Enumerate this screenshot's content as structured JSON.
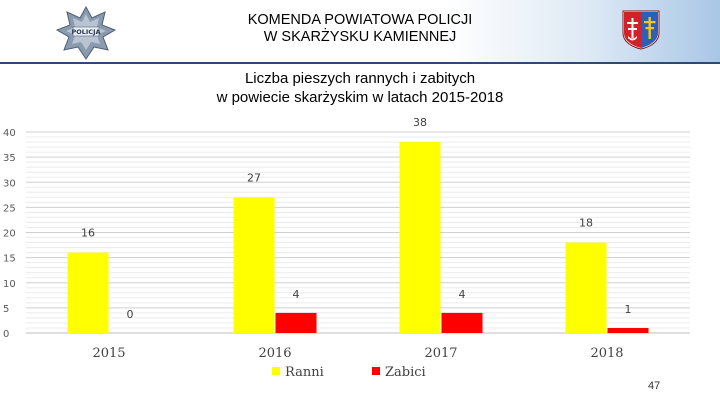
{
  "header": {
    "title_line1": "KOMENDA POWIATOWA POLICJI",
    "title_line2": "W SKARŻYSKU KAMIENNEJ",
    "left_logo_text": "POLICJA"
  },
  "colors": {
    "ranni": "#ffff00",
    "zabici": "#ff0000",
    "header_rule": "#2c4a75",
    "crest_red": "#d4202a",
    "crest_blue": "#2e5fb8",
    "crest_gold": "#f5c518"
  },
  "chart_data": {
    "type": "bar",
    "title_line1": "Liczba pieszych rannych i zabitych",
    "title_line2": "w powiecie skarżyskim w latach 2015-2018",
    "categories": [
      "2015",
      "2016",
      "2017",
      "2018"
    ],
    "series": [
      {
        "name": "Ranni",
        "values": [
          16,
          27,
          38,
          18
        ],
        "color": "#ffff00"
      },
      {
        "name": "Zabici",
        "values": [
          0,
          4,
          4,
          1
        ],
        "color": "#ff0000"
      }
    ],
    "ylim": [
      0,
      40
    ],
    "yticks": [
      0,
      5,
      10,
      15,
      20,
      25,
      30,
      35,
      40
    ],
    "grid": true,
    "legend_position": "bottom"
  },
  "page_number": "47"
}
